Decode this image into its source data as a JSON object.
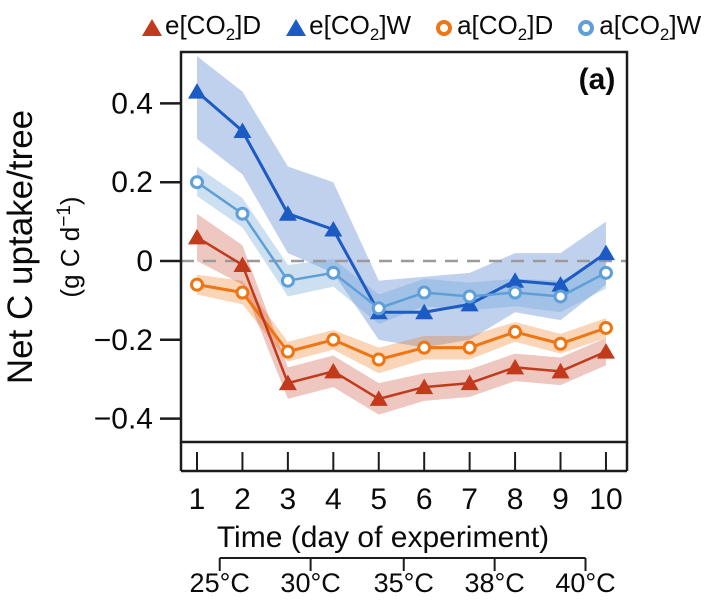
{
  "figure": {
    "panel_label": "(a)"
  },
  "legend": {
    "items": [
      {
        "marker": "triangle",
        "color": "#c23a1c",
        "pre": "e[CO",
        "sub": "2",
        "post": "]D"
      },
      {
        "marker": "triangle",
        "color": "#1d5bc4",
        "pre": "e[CO",
        "sub": "2",
        "post": "]W"
      },
      {
        "marker": "circle",
        "color": "#ee7512",
        "pre": "a[CO",
        "sub": "2",
        "post": "]D"
      },
      {
        "marker": "circle",
        "color": "#5f9fd8",
        "pre": "a[CO",
        "sub": "2",
        "post": "]W"
      }
    ]
  },
  "chart_data": {
    "type": "line",
    "title": "",
    "xlabel": "Time (day of experiment)",
    "ylabel": "Net C uptake/tree",
    "ylabel_unit": {
      "pre": "(g C d",
      "sup": "−1",
      "post": ")"
    },
    "x": [
      1,
      2,
      3,
      4,
      5,
      6,
      7,
      8,
      9,
      10
    ],
    "xtick_labels": [
      "1",
      "2",
      "3",
      "4",
      "5",
      "6",
      "7",
      "8",
      "9",
      "10"
    ],
    "ylim": [
      -0.47,
      0.53
    ],
    "yticks": [
      0.4,
      0.2,
      0,
      -0.2,
      -0.4
    ],
    "ytick_labels": [
      "0.4",
      "0.2",
      "0",
      "−0.2",
      "−0.4"
    ],
    "grid": false,
    "legend_position": "top",
    "zero_line": {
      "value": 0,
      "style": "dashed",
      "color": "#9a9a9a"
    },
    "series": [
      {
        "id": "eCO2D",
        "name": "e[CO2]D",
        "marker": "triangle",
        "color": "#c23a1c",
        "band_color": "rgba(194,58,28,0.28)",
        "values": [
          0.06,
          -0.01,
          -0.31,
          -0.28,
          -0.35,
          -0.32,
          -0.31,
          -0.27,
          -0.28,
          -0.23
        ],
        "band_upper": [
          0.12,
          0.04,
          -0.27,
          -0.24,
          -0.31,
          -0.285,
          -0.275,
          -0.235,
          -0.245,
          -0.195
        ],
        "band_lower": [
          0.0,
          -0.06,
          -0.35,
          -0.32,
          -0.39,
          -0.355,
          -0.345,
          -0.305,
          -0.315,
          -0.265
        ]
      },
      {
        "id": "eCO2W",
        "name": "e[CO2]W",
        "marker": "triangle",
        "color": "#1d5bc4",
        "band_color": "rgba(48,104,200,0.30)",
        "values": [
          0.43,
          0.33,
          0.12,
          0.08,
          -0.13,
          -0.13,
          -0.11,
          -0.05,
          -0.06,
          0.02
        ],
        "band_upper": [
          0.52,
          0.43,
          0.24,
          0.2,
          -0.05,
          -0.04,
          -0.03,
          0.02,
          0.02,
          0.1
        ],
        "band_lower": [
          0.31,
          0.22,
          0.02,
          -0.03,
          -0.2,
          -0.22,
          -0.2,
          -0.13,
          -0.15,
          -0.06
        ]
      },
      {
        "id": "aCO2D",
        "name": "a[CO2]D",
        "marker": "circle",
        "color": "#ee7512",
        "band_color": "rgba(238,117,18,0.30)",
        "values": [
          -0.06,
          -0.08,
          -0.23,
          -0.2,
          -0.25,
          -0.22,
          -0.22,
          -0.18,
          -0.21,
          -0.17
        ],
        "band_upper": [
          -0.035,
          -0.05,
          -0.205,
          -0.175,
          -0.22,
          -0.19,
          -0.19,
          -0.155,
          -0.185,
          -0.145
        ],
        "band_lower": [
          -0.085,
          -0.11,
          -0.255,
          -0.225,
          -0.285,
          -0.25,
          -0.25,
          -0.205,
          -0.235,
          -0.195
        ]
      },
      {
        "id": "aCO2W",
        "name": "a[CO2]W",
        "marker": "circle",
        "color": "#5f9fd8",
        "band_color": "rgba(95,159,216,0.32)",
        "values": [
          0.2,
          0.12,
          -0.05,
          -0.03,
          -0.12,
          -0.08,
          -0.09,
          -0.08,
          -0.09,
          -0.03
        ],
        "band_upper": [
          0.24,
          0.16,
          -0.01,
          0.005,
          -0.085,
          -0.045,
          -0.055,
          -0.045,
          -0.05,
          0.01
        ],
        "band_lower": [
          0.165,
          0.085,
          -0.09,
          -0.065,
          -0.16,
          -0.115,
          -0.125,
          -0.115,
          -0.13,
          -0.07
        ]
      }
    ],
    "temp_scale": [
      {
        "label": "25°C",
        "day": 1.5
      },
      {
        "label": "30°C",
        "day": 3.5
      },
      {
        "label": "35°C",
        "day": 5.55
      },
      {
        "label": "38°C",
        "day": 7.55
      },
      {
        "label": "40°C",
        "day": 9.55
      }
    ]
  }
}
